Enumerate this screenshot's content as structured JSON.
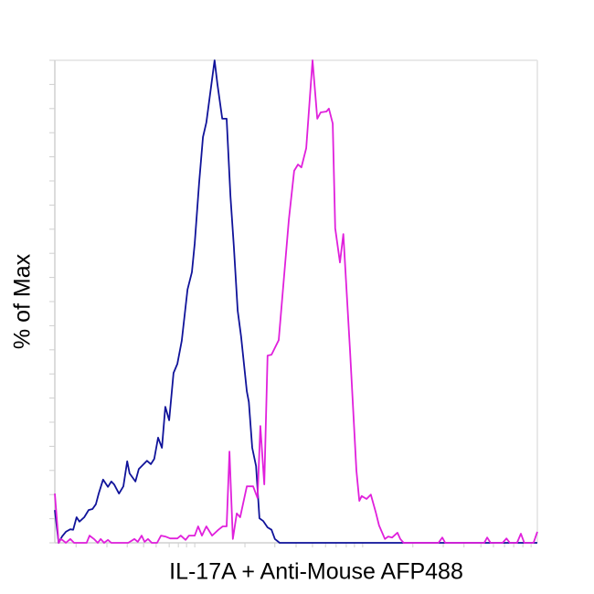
{
  "chart_data": {
    "type": "line",
    "title": "",
    "xlabel": "IL-17A + Anti-Mouse AFP488",
    "ylabel": "% of Max",
    "xscale": "log (unlabeled channel scale)",
    "xlim": [
      0,
      100
    ],
    "ylim": [
      0,
      100
    ],
    "grid": false,
    "legend": "none",
    "y_ticks": [
      0,
      5,
      10,
      15,
      20,
      25,
      30,
      35,
      40,
      45,
      50,
      55,
      60,
      65,
      70,
      75,
      80,
      85,
      90,
      95,
      100
    ],
    "x_ticks": [
      4.4,
      10.8,
      15.0,
      18.4,
      21.0,
      23.7,
      25.6,
      27.3,
      29.0,
      39.4,
      45.6,
      50.0,
      53.4,
      56.1,
      58.3,
      60.4,
      62.1,
      63.8,
      74.2,
      80.5,
      84.8,
      88.3,
      90.9,
      93.2,
      95.1,
      97.0,
      98.7
    ],
    "series": [
      {
        "color": "#10139a",
        "x": [
          0,
          0.8,
          1.5,
          2.3,
          3.2,
          3.8,
          4.5,
          5.1,
          6.1,
          7.0,
          7.8,
          8.5,
          9.1,
          10.0,
          11.0,
          11.7,
          12.3,
          13.3,
          14.2,
          15.0,
          15.5,
          16.7,
          17.4,
          18.4,
          19.1,
          19.9,
          20.6,
          21.4,
          22.2,
          22.9,
          23.7,
          24.6,
          25.4,
          26.3,
          27.5,
          28.4,
          29.0,
          29.9,
          30.7,
          31.4,
          33.1,
          33.7,
          34.7,
          35.6,
          36.4,
          37.1,
          37.9,
          38.6,
          39.8,
          40.2,
          40.9,
          41.7,
          42.4,
          43.2,
          44.1,
          44.9,
          45.6,
          46.6,
          100
        ],
        "y": [
          6.8,
          0,
          1.3,
          2.3,
          2.8,
          2.7,
          5.3,
          4.4,
          5.3,
          6.8,
          7.0,
          8.0,
          10.2,
          13.1,
          11.6,
          12.7,
          12.1,
          10.2,
          11.7,
          16.9,
          14.4,
          12.7,
          15.3,
          16.3,
          17.0,
          16.3,
          17.4,
          21.8,
          19.7,
          28.2,
          25.4,
          35.2,
          37.1,
          41.9,
          52.5,
          56.1,
          62.1,
          74.6,
          84.1,
          87.1,
          100,
          95.1,
          87.9,
          87.9,
          71.8,
          61.4,
          48.1,
          42.8,
          31.4,
          29.2,
          19.7,
          15.9,
          5.1,
          4.5,
          3.2,
          2.7,
          0.8,
          0,
          0
        ]
      },
      {
        "color": "#e020dc",
        "x": [
          0,
          0.8,
          1.3,
          2.3,
          3.2,
          4.0,
          6.6,
          7.2,
          8.1,
          8.9,
          9.5,
          10.2,
          11.0,
          11.7,
          15.2,
          16.5,
          17.2,
          18.0,
          18.6,
          19.3,
          20.1,
          21.2,
          22.0,
          22.9,
          23.9,
          25.4,
          26.1,
          27.1,
          27.8,
          29.0,
          29.7,
          30.5,
          31.4,
          32.6,
          33.9,
          34.8,
          35.6,
          36.2,
          36.9,
          37.7,
          38.4,
          39.8,
          41.1,
          42.0,
          42.6,
          43.4,
          44.1,
          44.9,
          46.4,
          47.5,
          48.5,
          49.6,
          50.4,
          51.1,
          52.1,
          53.4,
          54.4,
          55.1,
          56.3,
          56.8,
          57.6,
          58.1,
          59.1,
          59.8,
          61.2,
          62.5,
          63.1,
          63.6,
          64.6,
          65.5,
          66.5,
          67.2,
          68.4,
          69.1,
          69.9,
          71.0,
          71.6,
          72.3,
          79.5,
          80.3,
          80.9,
          89.0,
          89.6,
          90.3,
          92.8,
          93.6,
          94.3,
          95.8,
          96.6,
          97.3,
          99.2,
          100
        ],
        "y": [
          10.2,
          0,
          0.8,
          0,
          0.8,
          0,
          0,
          1.5,
          0.8,
          0,
          0.8,
          0,
          0.6,
          0,
          0,
          0.8,
          0.2,
          1.5,
          0.2,
          0.8,
          0,
          0,
          1.5,
          1.3,
          0.9,
          0.9,
          1.5,
          0.6,
          1.5,
          1.5,
          3.4,
          1.5,
          3.4,
          1.5,
          2.7,
          3.4,
          3.4,
          18.9,
          0.8,
          6.1,
          5.3,
          11.7,
          11.7,
          9.3,
          24.2,
          12.1,
          38.8,
          39.0,
          42.0,
          55.1,
          67.0,
          77.1,
          78.4,
          77.8,
          81.8,
          100,
          87.9,
          89.2,
          89.4,
          90.0,
          86.9,
          65.2,
          58.1,
          64.0,
          39.6,
          15.0,
          8.7,
          9.7,
          9.1,
          10.0,
          6.4,
          3.6,
          0.8,
          1.3,
          1.1,
          2.1,
          0.8,
          0,
          0,
          1.1,
          0,
          0,
          1.1,
          0,
          0,
          0.9,
          0,
          0,
          1.9,
          0,
          0,
          2.3
        ]
      }
    ]
  }
}
